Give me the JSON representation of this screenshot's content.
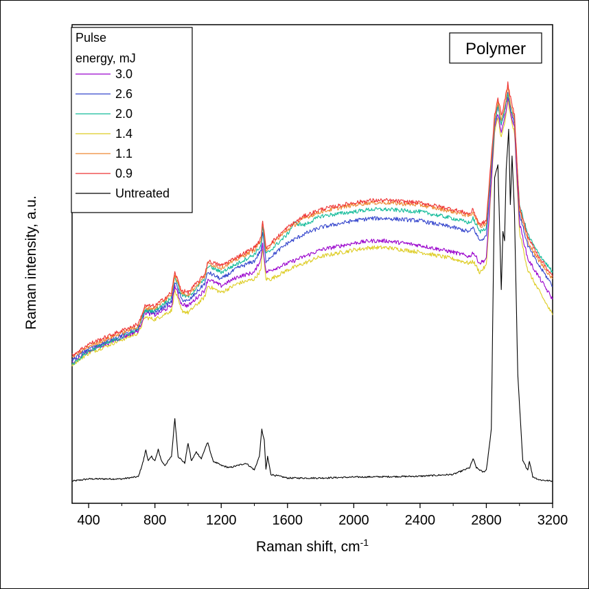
{
  "chart_data": {
    "type": "line",
    "panel_label": "Polymer",
    "xlabel": "Raman shift, cm",
    "xlabel_sup": "-1",
    "ylabel": "Raman intensity, a.u.",
    "xlim": [
      300,
      3200
    ],
    "ylim": [
      0,
      100
    ],
    "x_ticks": [
      400,
      800,
      1200,
      1600,
      2000,
      2400,
      2800,
      3200
    ],
    "y_ticks_shown": false,
    "grid": false,
    "legend": {
      "title_line1": "Pulse",
      "title_line2": "energy, mJ",
      "placement": "top-left"
    },
    "series": [
      {
        "name": "3.0",
        "color": "#9900CC",
        "x": [
          300,
          400,
          600,
          700,
          740,
          800,
          900,
          920,
          960,
          1000,
          1100,
          1120,
          1200,
          1300,
          1400,
          1440,
          1450,
          1470,
          1500,
          1600,
          1700,
          1800,
          2000,
          2100,
          2200,
          2400,
          2600,
          2700,
          2720,
          2760,
          2800,
          2850,
          2870,
          2890,
          2910,
          2930,
          2950,
          2970,
          3000,
          3050,
          3100,
          3200
        ],
        "y": [
          27,
          29.5,
          32.5,
          34,
          38,
          37.5,
          39.5,
          44,
          40,
          39.5,
          43,
          45.5,
          44,
          46,
          47,
          50,
          53.5,
          47,
          47.5,
          49,
          50.5,
          52,
          53.5,
          54,
          54,
          53,
          51.5,
          50.5,
          51.5,
          49,
          50,
          79,
          82.5,
          78,
          81,
          86,
          82,
          79,
          58,
          50,
          47,
          41
        ]
      },
      {
        "name": "2.6",
        "color": "#3344CC",
        "x": [
          300,
          400,
          600,
          700,
          740,
          800,
          900,
          920,
          960,
          1000,
          1100,
          1120,
          1200,
          1300,
          1400,
          1440,
          1450,
          1470,
          1500,
          1600,
          1700,
          1800,
          2000,
          2100,
          2200,
          2400,
          2600,
          2700,
          2720,
          2760,
          2800,
          2850,
          2870,
          2890,
          2910,
          2930,
          2950,
          2970,
          3000,
          3050,
          3100,
          3200
        ],
        "y": [
          27.5,
          30,
          33,
          34.5,
          38.5,
          38,
          40.5,
          45,
          41,
          40.5,
          44.5,
          47,
          45.5,
          48,
          49.5,
          52,
          56,
          49.5,
          50.5,
          53.5,
          55.5,
          57,
          58.5,
          59,
          59,
          58.5,
          57,
          56,
          57,
          54,
          55,
          80,
          84,
          80,
          83,
          87,
          83,
          80,
          60,
          53,
          49.5,
          44
        ]
      },
      {
        "name": "2.0",
        "color": "#11BB99",
        "x": [
          300,
          400,
          600,
          700,
          740,
          800,
          900,
          920,
          960,
          1000,
          1100,
          1120,
          1200,
          1300,
          1400,
          1440,
          1450,
          1470,
          1500,
          1600,
          1640,
          1700,
          1800,
          2000,
          2100,
          2200,
          2400,
          2600,
          2700,
          2720,
          2760,
          2800,
          2850,
          2870,
          2890,
          2910,
          2930,
          2950,
          2970,
          3000,
          3050,
          3100,
          3200
        ],
        "y": [
          26.5,
          29.5,
          32.5,
          34.5,
          38.5,
          38.5,
          41.5,
          46,
          42,
          41.5,
          45.5,
          48.5,
          47,
          49,
          51,
          53,
          57,
          51,
          52,
          55.5,
          58,
          57.5,
          59.5,
          60.5,
          61,
          61,
          60.5,
          59,
          58,
          59,
          56,
          57,
          80,
          84,
          80,
          83,
          87,
          83,
          81,
          62,
          55.5,
          52,
          47
        ]
      },
      {
        "name": "1.4",
        "color": "#DDCC22",
        "x": [
          300,
          400,
          600,
          700,
          740,
          800,
          900,
          920,
          960,
          1000,
          1100,
          1120,
          1200,
          1300,
          1400,
          1440,
          1450,
          1470,
          1500,
          1600,
          1700,
          1800,
          2000,
          2100,
          2200,
          2400,
          2600,
          2700,
          2720,
          2760,
          2800,
          2850,
          2870,
          2890,
          2910,
          2930,
          2950,
          2970,
          3000,
          3050,
          3100,
          3200
        ],
        "y": [
          26.5,
          29,
          32,
          33.5,
          37,
          36.5,
          38.5,
          43,
          38.5,
          38,
          41.5,
          44,
          42.5,
          44.5,
          45.5,
          47.5,
          52.5,
          45.5,
          45.5,
          47.5,
          49,
          50.5,
          52,
          52.5,
          52.5,
          51.5,
          50,
          49,
          49.5,
          47,
          48.5,
          78,
          81.5,
          77,
          80,
          85,
          81,
          78,
          56,
          47.5,
          44,
          37.5
        ]
      },
      {
        "name": "1.1",
        "color": "#EE8833",
        "x": [
          300,
          400,
          600,
          700,
          740,
          800,
          900,
          920,
          960,
          1000,
          1100,
          1120,
          1200,
          1300,
          1400,
          1440,
          1450,
          1470,
          1500,
          1600,
          1700,
          1800,
          2000,
          2100,
          2200,
          2400,
          2600,
          2700,
          2720,
          2760,
          2800,
          2850,
          2870,
          2890,
          2910,
          2930,
          2950,
          2970,
          3000,
          3050,
          3100,
          3200
        ],
        "y": [
          28,
          30.5,
          33.5,
          35,
          39,
          39,
          42,
          46.5,
          42.5,
          42,
          46,
          49,
          48,
          50,
          52,
          54,
          58,
          52,
          53,
          56.5,
          59,
          60.5,
          62,
          62.5,
          62.5,
          62,
          60.5,
          59.5,
          60.5,
          57,
          58,
          81,
          85,
          81,
          84,
          88,
          84,
          81,
          61,
          54,
          50.5,
          45.5
        ]
      },
      {
        "name": "0.9",
        "color": "#EE3333",
        "x": [
          300,
          400,
          600,
          700,
          740,
          800,
          900,
          920,
          960,
          1000,
          1100,
          1120,
          1200,
          1300,
          1400,
          1440,
          1450,
          1470,
          1500,
          1600,
          1700,
          1800,
          2000,
          2100,
          2200,
          2400,
          2600,
          2700,
          2720,
          2760,
          2800,
          2850,
          2870,
          2890,
          2910,
          2930,
          2950,
          2970,
          3000,
          3050,
          3100,
          3200
        ],
        "y": [
          28.5,
          31,
          34,
          35.5,
          39.5,
          39.5,
          42.5,
          47,
          43,
          42.5,
          46.5,
          49.5,
          48.5,
          50.5,
          52.5,
          54.5,
          58.5,
          52.5,
          53.5,
          57,
          59.5,
          61,
          62.5,
          63,
          63,
          62.5,
          61,
          60,
          61,
          57.5,
          58.5,
          82,
          86,
          82,
          85,
          89,
          85,
          82,
          61.5,
          55,
          51.5,
          46
        ]
      },
      {
        "name": "Untreated",
        "color": "#000000",
        "x": [
          300,
          400,
          500,
          600,
          700,
          730,
          745,
          760,
          780,
          800,
          820,
          840,
          860,
          900,
          920,
          940,
          980,
          1000,
          1020,
          1050,
          1080,
          1110,
          1120,
          1150,
          1200,
          1250,
          1300,
          1350,
          1400,
          1430,
          1445,
          1460,
          1470,
          1480,
          1490,
          1500,
          1600,
          1800,
          2000,
          2200,
          2400,
          2600,
          2700,
          2720,
          2740,
          2780,
          2800,
          2830,
          2850,
          2870,
          2880,
          2890,
          2900,
          2910,
          2920,
          2935,
          2945,
          2955,
          2970,
          2990,
          3020,
          3050,
          3060,
          3080,
          3120,
          3200
        ],
        "y": [
          0.5,
          1,
          1,
          1,
          1.5,
          5,
          7.5,
          5,
          6,
          5,
          7.5,
          5,
          4,
          6,
          14.5,
          6,
          4.5,
          9,
          5,
          7,
          5.5,
          8.5,
          9,
          5,
          4,
          3.5,
          4,
          4.5,
          3,
          6,
          12,
          9.5,
          3,
          6,
          4,
          2,
          1.2,
          1.2,
          1.4,
          1.5,
          1.6,
          2,
          3.5,
          5.5,
          3.5,
          2.5,
          3,
          12,
          68,
          71,
          57,
          43,
          56,
          54,
          70,
          79,
          62,
          73,
          60,
          24,
          5,
          3,
          5,
          1.5,
          0.8,
          0.5
        ]
      }
    ]
  }
}
